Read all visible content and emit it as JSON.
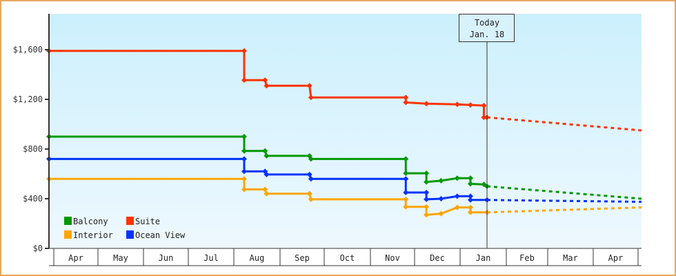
{
  "chart_data": {
    "type": "line",
    "title": "",
    "xlabel": "",
    "ylabel": "",
    "ylim": [
      0,
      1800
    ],
    "y_ticks": [
      "$0",
      "$400",
      "$800",
      "$1,200",
      "$1,600"
    ],
    "y_tick_values": [
      0,
      400,
      800,
      1200,
      1600
    ],
    "months": [
      "Apr",
      "May",
      "Jun",
      "Jul",
      "Aug",
      "Sep",
      "Oct",
      "Nov",
      "Dec",
      "Jan",
      "Feb",
      "Mar",
      "Apr"
    ],
    "today_marker": {
      "line1": "Today",
      "line2": "Jan. 18"
    },
    "legend": [
      {
        "name": "Balcony",
        "color": "#009900"
      },
      {
        "name": "Suite",
        "color": "#ff3300"
      },
      {
        "name": "Interior",
        "color": "#ffa500"
      },
      {
        "name": "Ocean View",
        "color": "#0033ff"
      }
    ],
    "series": [
      {
        "name": "Suite",
        "color": "#ff3300",
        "points": [
          [
            "Apr 1",
            1590
          ],
          [
            "Aug 1",
            1590
          ],
          [
            "Aug 1",
            1355
          ],
          [
            "Aug 15",
            1355
          ],
          [
            "Aug 16",
            1310
          ],
          [
            "Sep 14",
            1310
          ],
          [
            "Sep 15",
            1215
          ],
          [
            "Nov 18",
            1215
          ],
          [
            "Nov 18",
            1175
          ],
          [
            "Dec 2",
            1165
          ],
          [
            "Dec 23",
            1160
          ],
          [
            "Jan 1",
            1155
          ],
          [
            "Jan 10",
            1150
          ],
          [
            "Jan 10",
            1055
          ],
          [
            "Jan 18",
            1055
          ]
        ],
        "forecast_end": 950
      },
      {
        "name": "Balcony",
        "color": "#009900",
        "points": [
          [
            "Apr 1",
            900
          ],
          [
            "Aug 1",
            900
          ],
          [
            "Aug 1",
            785
          ],
          [
            "Aug 15",
            785
          ],
          [
            "Aug 16",
            745
          ],
          [
            "Sep 14",
            745
          ],
          [
            "Sep 15",
            720
          ],
          [
            "Nov 18",
            720
          ],
          [
            "Nov 18",
            605
          ],
          [
            "Dec 2",
            605
          ],
          [
            "Dec 2",
            535
          ],
          [
            "Dec 12",
            545
          ],
          [
            "Dec 23",
            565
          ],
          [
            "Jan 1",
            565
          ],
          [
            "Jan 1",
            520
          ],
          [
            "Jan 10",
            515
          ],
          [
            "Jan 18",
            500
          ]
        ],
        "forecast_end": 400
      },
      {
        "name": "Ocean View",
        "color": "#0033ff",
        "points": [
          [
            "Apr 1",
            720
          ],
          [
            "Aug 1",
            720
          ],
          [
            "Aug 1",
            620
          ],
          [
            "Aug 15",
            620
          ],
          [
            "Aug 16",
            595
          ],
          [
            "Sep 14",
            595
          ],
          [
            "Sep 15",
            560
          ],
          [
            "Nov 18",
            560
          ],
          [
            "Nov 18",
            450
          ],
          [
            "Dec 2",
            450
          ],
          [
            "Dec 2",
            395
          ],
          [
            "Dec 12",
            400
          ],
          [
            "Dec 23",
            420
          ],
          [
            "Jan 1",
            420
          ],
          [
            "Jan 1",
            390
          ],
          [
            "Jan 18",
            390
          ]
        ],
        "forecast_end": 375
      },
      {
        "name": "Interior",
        "color": "#ffa500",
        "points": [
          [
            "Apr 1",
            560
          ],
          [
            "Aug 1",
            560
          ],
          [
            "Aug 1",
            475
          ],
          [
            "Aug 15",
            475
          ],
          [
            "Aug 16",
            440
          ],
          [
            "Sep 14",
            440
          ],
          [
            "Sep 15",
            395
          ],
          [
            "Nov 18",
            395
          ],
          [
            "Nov 18",
            335
          ],
          [
            "Dec 2",
            335
          ],
          [
            "Dec 2",
            270
          ],
          [
            "Dec 12",
            280
          ],
          [
            "Dec 23",
            330
          ],
          [
            "Jan 1",
            330
          ],
          [
            "Jan 1",
            290
          ],
          [
            "Jan 18",
            290
          ]
        ],
        "forecast_end": 330
      }
    ]
  }
}
